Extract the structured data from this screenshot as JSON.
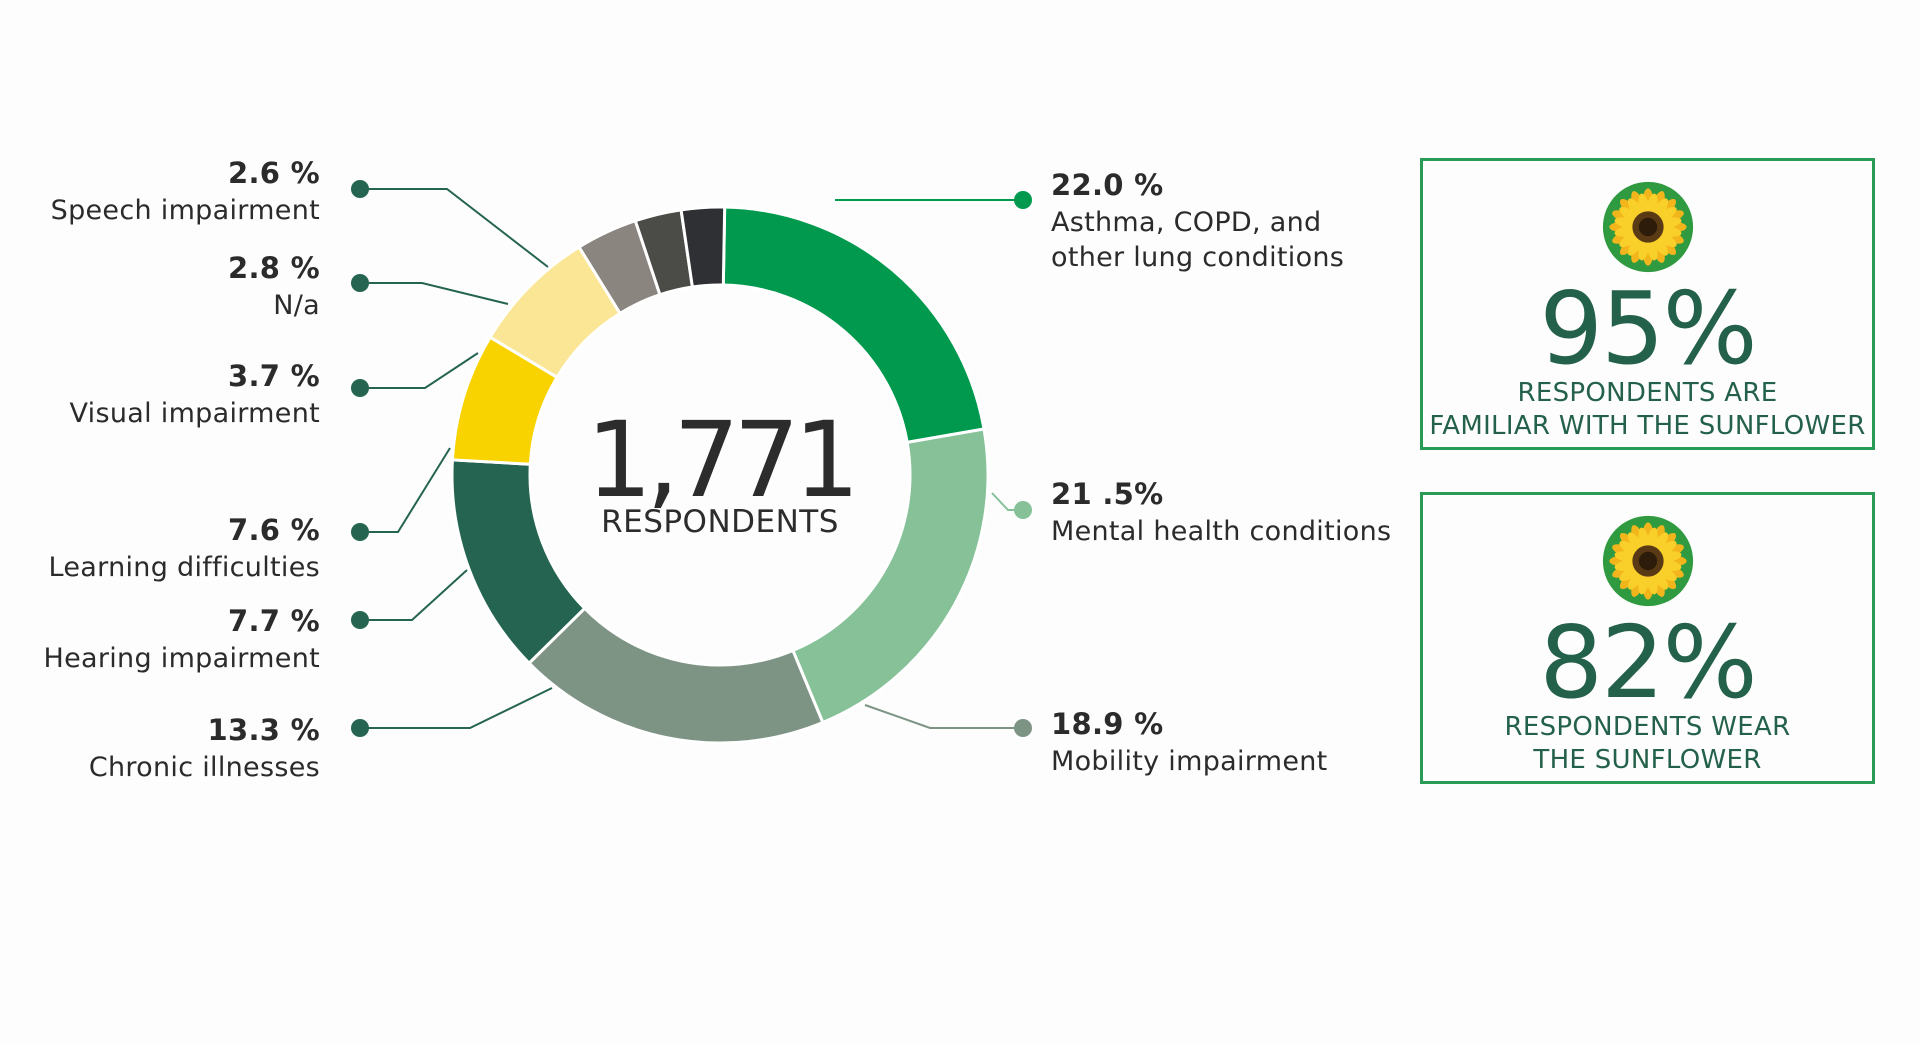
{
  "chart_data": {
    "type": "pie",
    "donut": true,
    "center": {
      "value": "1,771",
      "label": "RESPONDENTS"
    },
    "slices": [
      {
        "name": "Asthma, COPD, and other lung conditions",
        "value": 22.0,
        "pct_label": "22.0 %",
        "color": "#00994d"
      },
      {
        "name": "Mental health conditions",
        "value": 21.5,
        "pct_label": "21 .5%",
        "color": "#86c198"
      },
      {
        "name": "Mobility impairment",
        "value": 18.9,
        "pct_label": "18.9 %",
        "color": "#7d9485"
      },
      {
        "name": "Chronic illnesses",
        "value": 13.3,
        "pct_label": "13.3 %",
        "color": "#246450"
      },
      {
        "name": "Hearing impairment",
        "value": 7.7,
        "pct_label": "7.7 %",
        "color": "#f8d300"
      },
      {
        "name": "Learning difficulties",
        "value": 7.6,
        "pct_label": "7.6 %",
        "color": "#fbe695"
      },
      {
        "name": "Visual impairment",
        "value": 3.7,
        "pct_label": "3.7 %",
        "color": "#8b8580"
      },
      {
        "name": "N/a",
        "value": 2.8,
        "pct_label": "2.8 %",
        "color": "#4b4b48"
      },
      {
        "name": "Speech impairment",
        "value": 2.6,
        "pct_label": "2.6 %",
        "color": "#2e3033"
      }
    ]
  },
  "labels": {
    "asthma": {
      "pct": "22.0 %",
      "line1": "Asthma, COPD, and",
      "line2": "other lung conditions"
    },
    "mental": {
      "pct": "21 .5%",
      "line1": "Mental health conditions"
    },
    "mobility": {
      "pct": "18.9 %",
      "line1": "Mobility impairment"
    },
    "chronic": {
      "pct": "13.3 %",
      "line1": "Chronic illnesses"
    },
    "hearing": {
      "pct": "7.7 %",
      "line1": "Hearing impairment"
    },
    "learning": {
      "pct": "7.6 %",
      "line1": "Learning difficulties"
    },
    "visual": {
      "pct": "3.7 %",
      "line1": "Visual impairment"
    },
    "na": {
      "pct": "2.8 %",
      "line1": "N/a"
    },
    "speech": {
      "pct": "2.6 %",
      "line1": "Speech impairment"
    }
  },
  "stats": [
    {
      "value": "95%",
      "line1": "RESPONDENTS ARE",
      "line2": "FAMILIAR WITH THE SUNFLOWER",
      "icon": "sunflower-icon"
    },
    {
      "value": "82%",
      "line1": "RESPONDENTS WEAR",
      "line2": "THE SUNFLOWER",
      "icon": "sunflower-icon"
    }
  ],
  "colors": {
    "accent_green": "#00994d",
    "dark_green_text": "#24614a",
    "box_border": "#2a9a57"
  }
}
